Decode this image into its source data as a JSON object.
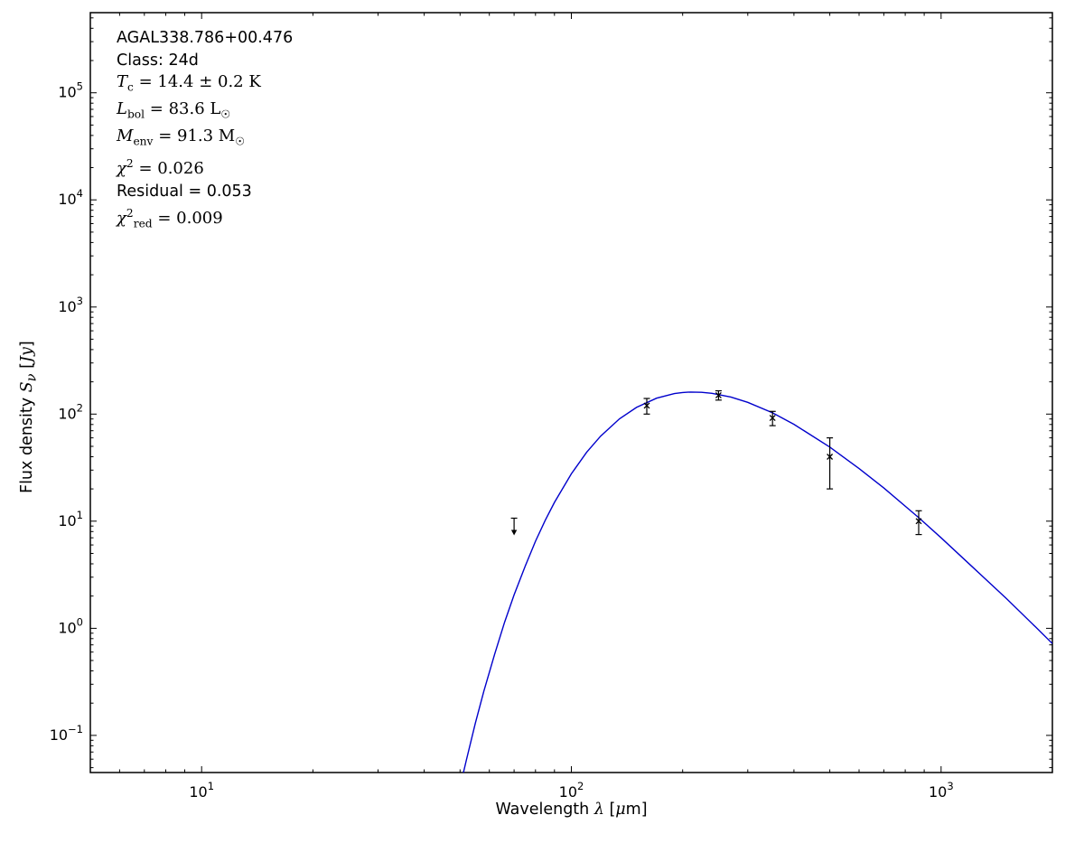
{
  "figure": {
    "background": "#ffffff"
  },
  "colors": {
    "curve": "#0000cc",
    "marker": "#000000",
    "axes": "#000000"
  },
  "chart_data": {
    "type": "line",
    "title": "",
    "xlabel": "Wavelength *λ* [*μ*m]",
    "ylabel": "Flux density *S*_{*ν*} [*Jy*]",
    "xscale": "log",
    "yscale": "log",
    "xlim": [
      5,
      2000
    ],
    "ylim": [
      0.045,
      560000
    ],
    "x_tick_exponents": [
      1,
      2,
      3
    ],
    "y_tick_exponents": [
      -1,
      0,
      1,
      2,
      3,
      4,
      5
    ],
    "grid": false,
    "legend": "none",
    "annotations": [
      {
        "text": "AGAL338.786+00.476",
        "math": false
      },
      {
        "text": "Class: 24d",
        "math": false
      },
      {
        "text": "*T*_{c} = 14.4 ± 0.2 K",
        "math": true
      },
      {
        "text": "*L*_{bol} = 83.6 L_{☉}",
        "math": true
      },
      {
        "text": "*M*_{env} = 91.3 M_{☉}",
        "math": true
      },
      {
        "text": "*χ*^{2} = 0.026",
        "math": true
      },
      {
        "text": "Residual = 0.053",
        "math": false
      },
      {
        "text": "*χ*^{2}_{red} = 0.009",
        "math": true
      }
    ],
    "series": [
      {
        "name": "greybody-fit-curve",
        "type": "line",
        "color": "#0000cc",
        "points": [
          [
            46,
            0.0095
          ],
          [
            48,
            0.017
          ],
          [
            50,
            0.033
          ],
          [
            52,
            0.059
          ],
          [
            55,
            0.13
          ],
          [
            58,
            0.26
          ],
          [
            62,
            0.57
          ],
          [
            66,
            1.14
          ],
          [
            70,
            2.05
          ],
          [
            75,
            3.8
          ],
          [
            80,
            6.5
          ],
          [
            85,
            10.2
          ],
          [
            90,
            15.0
          ],
          [
            100,
            27.7
          ],
          [
            110,
            44.0
          ],
          [
            120,
            62.3
          ],
          [
            135,
            90.4
          ],
          [
            150,
            115.4
          ],
          [
            170,
            140.6
          ],
          [
            190,
            155.3
          ],
          [
            200,
            159.0
          ],
          [
            210,
            160.5
          ],
          [
            225,
            159.6
          ],
          [
            240,
            156.3
          ],
          [
            270,
            144.2
          ],
          [
            300,
            128.7
          ],
          [
            350,
            102.7
          ],
          [
            400,
            80.3
          ],
          [
            500,
            49.2
          ],
          [
            600,
            31.0
          ],
          [
            700,
            20.4
          ],
          [
            870,
            10.8
          ],
          [
            1000,
            7.0
          ],
          [
            1200,
            3.9
          ],
          [
            1500,
            1.9
          ],
          [
            1800,
            1.03
          ],
          [
            2000,
            0.72
          ]
        ]
      },
      {
        "name": "photometry",
        "type": "errorbar",
        "color": "#000000",
        "points": [
          {
            "wavelength_um": 160,
            "flux_jy": 120,
            "err_jy": 20
          },
          {
            "wavelength_um": 250,
            "flux_jy": 150,
            "err_jy": 15
          },
          {
            "wavelength_um": 350,
            "flux_jy": 92,
            "err_jy": 14
          },
          {
            "wavelength_um": 500,
            "flux_jy": 40,
            "err_jy": 20
          },
          {
            "wavelength_um": 870,
            "flux_jy": 10,
            "err_jy": 2.5
          }
        ]
      }
    ],
    "upper_limits": [
      {
        "wavelength_um": 70,
        "flux_jy": 9.5
      }
    ]
  }
}
